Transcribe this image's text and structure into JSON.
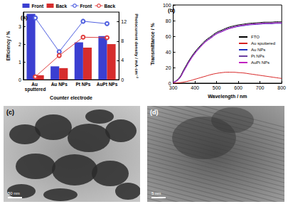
{
  "chart_data": [
    {
      "type": "bar",
      "annotations": [
        "(a)"
      ],
      "x_label": "Counter electrode",
      "y_label": "Efficiency / %",
      "y2_label": "Photocurrent density / mA·cm⁻²",
      "categories": [
        "Au sputtered",
        "Au NPs",
        "Pt NPs",
        "AuPt NPs"
      ],
      "series": [
        {
          "name": "Front",
          "type": "bar",
          "axis": "y",
          "color": "#3b3fd1",
          "values": [
            3.7,
            0.75,
            2.1,
            2.45
          ]
        },
        {
          "name": "Back",
          "type": "bar",
          "axis": "y",
          "color": "#d62d2d",
          "values": [
            0.25,
            0.65,
            1.8,
            2.0
          ]
        },
        {
          "name": "Front",
          "type": "line",
          "axis": "y2",
          "color": "#5060e0",
          "marker": "circle",
          "line_style": "solid",
          "values": [
            12.8,
            5.8,
            12.1,
            11.6
          ]
        },
        {
          "name": "Back",
          "type": "line",
          "axis": "y2",
          "color": "#e04040",
          "marker": "circle",
          "line_style": "solid",
          "values": [
            0.6,
            5.0,
            8.8,
            8.7
          ]
        }
      ],
      "ylim": [
        0,
        3.8
      ],
      "yticks": [
        0,
        1,
        2,
        3
      ],
      "y2lim": [
        0,
        14
      ],
      "y2ticks": [
        0,
        4,
        8,
        12
      ],
      "grid": false,
      "legend": "top"
    },
    {
      "type": "line",
      "annotations": [
        "(b)"
      ],
      "x_label": "Wavelength / nm",
      "y_label": "Transmittance / %",
      "x": [
        300,
        325,
        350,
        375,
        400,
        425,
        450,
        475,
        500,
        525,
        550,
        575,
        600,
        625,
        650,
        675,
        700,
        725,
        750,
        775,
        800
      ],
      "series": [
        {
          "name": "FTO",
          "color": "#000000",
          "values": [
            1,
            6,
            18,
            30,
            40,
            48,
            55,
            60,
            65,
            68,
            71,
            73,
            74.5,
            75.5,
            76.5,
            77,
            77.5,
            78,
            78,
            78.5,
            78.5
          ]
        },
        {
          "name": "Au sputtered",
          "color": "#d62020",
          "values": [
            0,
            0.5,
            1.5,
            3,
            5,
            7,
            9,
            11,
            12.5,
            13.5,
            14,
            14,
            13.5,
            13,
            12,
            11,
            10,
            9,
            8,
            7,
            6
          ]
        },
        {
          "name": "Au NPs",
          "color": "#2030c0",
          "values": [
            1,
            5,
            16,
            28,
            38,
            46,
            53,
            58,
            63,
            66,
            69,
            71,
            72.5,
            73.5,
            74.5,
            75,
            75.5,
            76,
            76,
            76.5,
            76.5
          ]
        },
        {
          "name": "Pt NPs",
          "color": "#6a3fa0",
          "values": [
            1,
            5,
            17,
            29,
            39,
            47,
            54,
            59,
            64,
            67,
            70,
            72,
            73.5,
            74.5,
            75.5,
            76,
            76.5,
            77,
            77,
            77.5,
            77.5
          ]
        },
        {
          "name": "AuPt NPs",
          "color": "#c020c0",
          "values": [
            1,
            5,
            16,
            28,
            38,
            46,
            53,
            58,
            63,
            66,
            69,
            71,
            73,
            74,
            75,
            75.5,
            76,
            76.5,
            76.5,
            77,
            77
          ]
        }
      ],
      "xlim": [
        300,
        800
      ],
      "xticks": [
        300,
        400,
        500,
        600,
        700,
        800
      ],
      "ylim": [
        0,
        100
      ],
      "yticks": [
        0,
        20,
        40,
        60,
        80,
        100
      ],
      "grid": false,
      "legend": "right",
      "line_style": "solid"
    }
  ],
  "images": [
    {
      "label": "(c)",
      "scale_bar": "50 nm"
    },
    {
      "label": "(d)",
      "scale_bar": "5 nm"
    }
  ]
}
